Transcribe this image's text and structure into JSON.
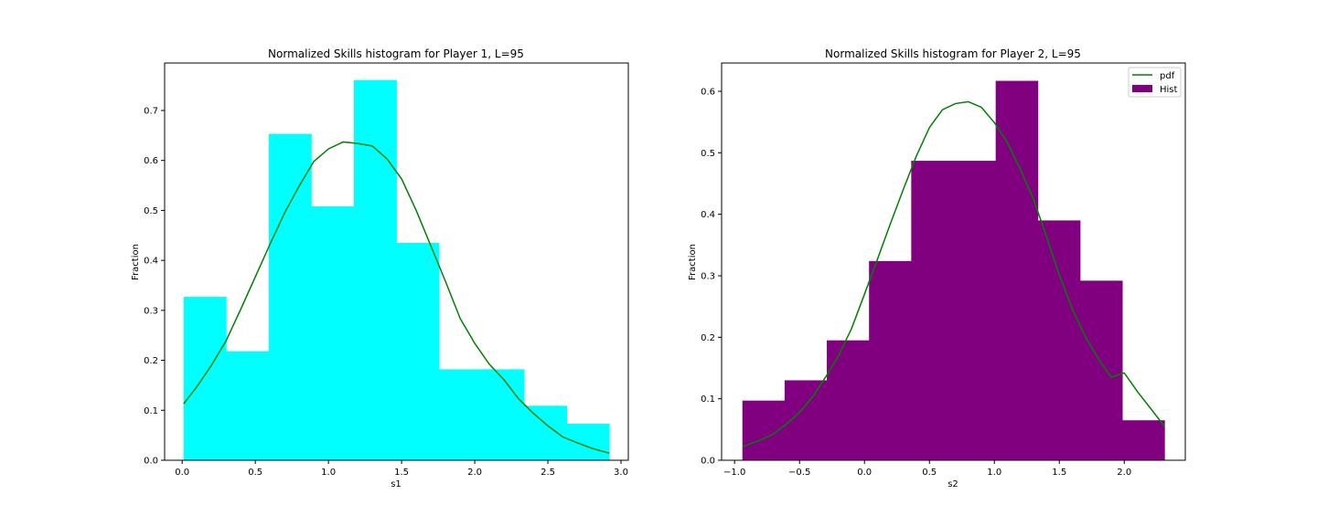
{
  "chart_data": [
    {
      "type": "bar",
      "title": "Normalized Skills histogram for Player 1, L=95",
      "xlabel": "s1",
      "ylabel": "Fraction",
      "xlim": [
        -0.12,
        3.05
      ],
      "ylim": [
        0,
        0.795
      ],
      "xticks": [
        0.0,
        0.5,
        1.0,
        1.5,
        2.0,
        2.5,
        3.0
      ],
      "xtick_labels": [
        "0.0",
        "0.5",
        "1.0",
        "1.5",
        "2.0",
        "2.5",
        "3.0"
      ],
      "yticks": [
        0.0,
        0.1,
        0.2,
        0.3,
        0.4,
        0.5,
        0.6,
        0.7
      ],
      "ytick_labels": [
        "0.0",
        "0.1",
        "0.2",
        "0.3",
        "0.4",
        "0.5",
        "0.6",
        "0.7"
      ],
      "grid": false,
      "legend": null,
      "colors": {
        "bars": "#00ffff",
        "pdf": "#008000"
      },
      "bins": [
        {
          "x0": 0.01,
          "x1": 0.301,
          "value": 0.327
        },
        {
          "x0": 0.301,
          "x1": 0.592,
          "value": 0.218
        },
        {
          "x0": 0.592,
          "x1": 0.883,
          "value": 0.653
        },
        {
          "x0": 0.883,
          "x1": 1.174,
          "value": 0.508
        },
        {
          "x0": 1.174,
          "x1": 1.465,
          "value": 0.761
        },
        {
          "x0": 1.465,
          "x1": 1.756,
          "value": 0.435
        },
        {
          "x0": 1.756,
          "x1": 2.047,
          "value": 0.182
        },
        {
          "x0": 2.047,
          "x1": 2.338,
          "value": 0.182
        },
        {
          "x0": 2.338,
          "x1": 2.629,
          "value": 0.109
        },
        {
          "x0": 2.629,
          "x1": 2.92,
          "value": 0.073
        }
      ],
      "series": [
        {
          "name": "pdf",
          "type": "line",
          "x": [
            0.01,
            0.1,
            0.2,
            0.3,
            0.4,
            0.5,
            0.6,
            0.7,
            0.8,
            0.9,
            1.0,
            1.1,
            1.2,
            1.3,
            1.4,
            1.5,
            1.6,
            1.7,
            1.8,
            1.9,
            2.0,
            2.1,
            2.2,
            2.3,
            2.4,
            2.5,
            2.6,
            2.7,
            2.8,
            2.92
          ],
          "y": [
            0.113,
            0.147,
            0.19,
            0.239,
            0.302,
            0.367,
            0.432,
            0.495,
            0.549,
            0.598,
            0.623,
            0.637,
            0.634,
            0.629,
            0.603,
            0.563,
            0.5,
            0.429,
            0.358,
            0.284,
            0.234,
            0.192,
            0.161,
            0.123,
            0.094,
            0.069,
            0.047,
            0.035,
            0.024,
            0.014
          ]
        }
      ]
    },
    {
      "type": "bar",
      "title": "Normalized Skills histogram for Player 2, L=95",
      "xlabel": "s2",
      "ylabel": "Fraction",
      "xlim": [
        -1.1,
        2.47
      ],
      "ylim": [
        0,
        0.646
      ],
      "xticks": [
        -1.0,
        -0.5,
        0.0,
        0.5,
        1.0,
        1.5,
        2.0
      ],
      "xtick_labels": [
        "−1.0",
        "−0.5",
        "0.0",
        "0.5",
        "1.0",
        "1.5",
        "2.0"
      ],
      "yticks": [
        0.0,
        0.1,
        0.2,
        0.3,
        0.4,
        0.5,
        0.6
      ],
      "ytick_labels": [
        "0.0",
        "0.1",
        "0.2",
        "0.3",
        "0.4",
        "0.5",
        "0.6"
      ],
      "grid": false,
      "legend": {
        "placement": "top-right",
        "entries": [
          {
            "label": "pdf",
            "kind": "line"
          },
          {
            "label": "Hist",
            "kind": "patch"
          }
        ]
      },
      "colors": {
        "bars": "#800080",
        "pdf": "#008000"
      },
      "bins": [
        {
          "x0": -0.94,
          "x1": -0.615,
          "value": 0.097
        },
        {
          "x0": -0.615,
          "x1": -0.29,
          "value": 0.13
        },
        {
          "x0": -0.29,
          "x1": 0.035,
          "value": 0.195
        },
        {
          "x0": 0.035,
          "x1": 0.36,
          "value": 0.324
        },
        {
          "x0": 0.36,
          "x1": 0.685,
          "value": 0.487
        },
        {
          "x0": 0.685,
          "x1": 1.01,
          "value": 0.487
        },
        {
          "x0": 1.01,
          "x1": 1.335,
          "value": 0.617
        },
        {
          "x0": 1.335,
          "x1": 1.66,
          "value": 0.39
        },
        {
          "x0": 1.66,
          "x1": 1.985,
          "value": 0.292
        },
        {
          "x0": 1.985,
          "x1": 2.31,
          "value": 0.065
        }
      ],
      "series": [
        {
          "name": "pdf",
          "type": "line",
          "x": [
            -0.94,
            -0.8,
            -0.7,
            -0.6,
            -0.5,
            -0.4,
            -0.3,
            -0.2,
            -0.1,
            0.0,
            0.1,
            0.2,
            0.3,
            0.4,
            0.5,
            0.6,
            0.7,
            0.8,
            0.9,
            1.0,
            1.1,
            1.2,
            1.3,
            1.4,
            1.5,
            1.6,
            1.7,
            1.8,
            1.9,
            2.0,
            2.1,
            2.2,
            2.31
          ],
          "y": [
            0.022,
            0.033,
            0.043,
            0.059,
            0.078,
            0.103,
            0.135,
            0.17,
            0.214,
            0.27,
            0.327,
            0.385,
            0.441,
            0.495,
            0.541,
            0.57,
            0.58,
            0.583,
            0.574,
            0.549,
            0.517,
            0.473,
            0.425,
            0.365,
            0.301,
            0.246,
            0.201,
            0.165,
            0.135,
            0.142,
            0.112,
            0.085,
            0.055
          ]
        }
      ]
    }
  ]
}
